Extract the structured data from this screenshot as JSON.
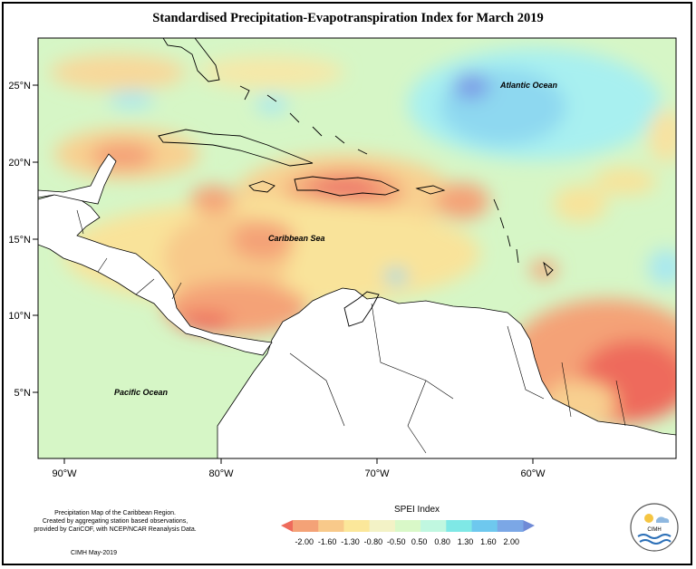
{
  "title": "Standardised Precipitation-Evapotranspiration Index for March 2019",
  "map": {
    "lat_labels": [
      "25°N",
      "20°N",
      "15°N",
      "10°N",
      "5°N"
    ],
    "lon_labels": [
      "90°W",
      "80°W",
      "70°W",
      "60°W"
    ],
    "places": {
      "atlantic": "Atlantic Ocean",
      "caribbean": "Caribbean Sea",
      "pacific": "Pacific Ocean"
    }
  },
  "legend": {
    "title": "SPEI Index",
    "ticks": [
      "-2.00",
      "-1.60",
      "-1.30",
      "-0.80",
      "-0.50",
      "0.50",
      "0.80",
      "1.30",
      "1.60",
      "2.00"
    ],
    "colors": [
      "#ee6b5c",
      "#f4a277",
      "#f8c98a",
      "#fbe79a",
      "#f3f2c6",
      "#d9f8c8",
      "#c0f7e0",
      "#7fe8e6",
      "#6ec8ee",
      "#7ba7e6",
      "#6f8ad6"
    ]
  },
  "credits": {
    "line1": "Precipitation Map of the Caribbean Region.",
    "line2": "Created by aggregating station based observations,",
    "line3": "provided by CariCOF, with NCEP/NCAR Reanalysis Data.",
    "line4": "CIMH May-2019"
  },
  "logo": {
    "text": "CIMH",
    "icon": "cimh-logo-icon"
  }
}
